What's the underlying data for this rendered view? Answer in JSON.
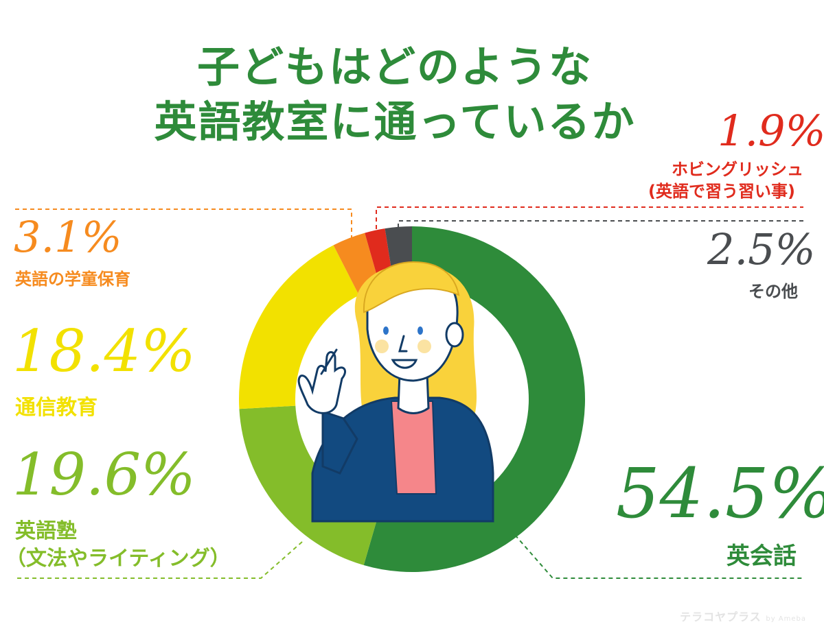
{
  "title": {
    "line1": "子どもはどのような",
    "line2": "英語教室に通っているか"
  },
  "chart_data": {
    "type": "pie",
    "title": "子どもはどのような英語教室に通っているか",
    "slices": [
      {
        "label": "英会話",
        "value": 54.5,
        "value_text": "54.5%",
        "color": "#2e8b3a"
      },
      {
        "label": "英語塾\n（文法やライティング）",
        "value": 19.6,
        "value_text": "19.6%",
        "color": "#84bd2a"
      },
      {
        "label": "通信教育",
        "value": 18.4,
        "value_text": "18.4%",
        "color": "#f2e100"
      },
      {
        "label": "英語の学童保育",
        "value": 3.1,
        "value_text": "3.1%",
        "color": "#f68b1f"
      },
      {
        "label": "ホビングリッシュ\n(英語で習う習い事)",
        "value": 1.9,
        "value_text": "1.9%",
        "color": "#e02b1d"
      },
      {
        "label": "その他",
        "value": 2.5,
        "value_text": "2.5%",
        "color": "#4a4d50"
      }
    ],
    "start": "top, clockwise",
    "legend": "callout labels"
  },
  "labels": {
    "eikaiwa_pct": "54.5%",
    "eikaiwa": "英会話",
    "juku_pct": "19.6%",
    "juku_line1": "英語塾",
    "juku_line2": "（文法やライティング）",
    "tsushin_pct": "18.4%",
    "tsushin": "通信教育",
    "gakudo_pct": "3.1%",
    "gakudo": "英語の学童保育",
    "hobby_pct": "1.9%",
    "hobby_line1": "ホビングリッシュ",
    "hobby_line2": "(英語で習う習い事)",
    "other_pct": "2.5%",
    "other": "その他"
  },
  "footer": {
    "logo_main": "テラコヤプラス",
    "logo_by": "by Ameba"
  }
}
